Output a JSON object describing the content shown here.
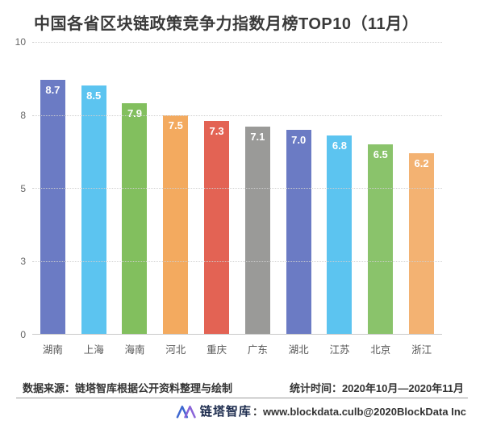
{
  "title": "中国各省区块链政策竞争力指数月榜TOP10（11月）",
  "chart_data": {
    "type": "bar",
    "title": "中国各省区块链政策竞争力指数月榜TOP10（11月）",
    "categories": [
      "湖南",
      "上海",
      "海南",
      "河北",
      "重庆",
      "广东",
      "湖北",
      "江苏",
      "北京",
      "浙江"
    ],
    "values": [
      8.7,
      8.5,
      7.9,
      7.5,
      7.3,
      7.1,
      7.0,
      6.8,
      6.5,
      6.2
    ],
    "bar_colors": [
      "#6B7BC4",
      "#5CC4F0",
      "#82BF5E",
      "#F3AA5F",
      "#E36354",
      "#9A9A98",
      "#6B7BC4",
      "#5CC4F0",
      "#8AC36B",
      "#F3B272"
    ],
    "value_label_color": "#ffffff",
    "xlabel": "",
    "ylabel": "",
    "ylim": [
      0,
      10
    ],
    "y_ticks": [
      "10",
      "8",
      "5",
      "3",
      "0"
    ],
    "grid": "horizontal dotted",
    "legend": "none"
  },
  "footer": {
    "source_text": "数据来源：链塔智库根据公开资料整理与绘制",
    "stat_text": "统计时间：2020年10月—2020年11月",
    "brand_name": "链塔智库",
    "brand_info": "：www.blockdata.culb@2020BlockData Inc"
  },
  "colors": {
    "title": "#3a3a3a",
    "axis_line": "#c9c9c9",
    "gridline": "#cfcfcf",
    "tick_label": "#666666",
    "x_label": "#555555",
    "footer_text": "#333333",
    "logo_blue_left": "#3E68D0",
    "logo_blue_right": "#8A64D8"
  }
}
